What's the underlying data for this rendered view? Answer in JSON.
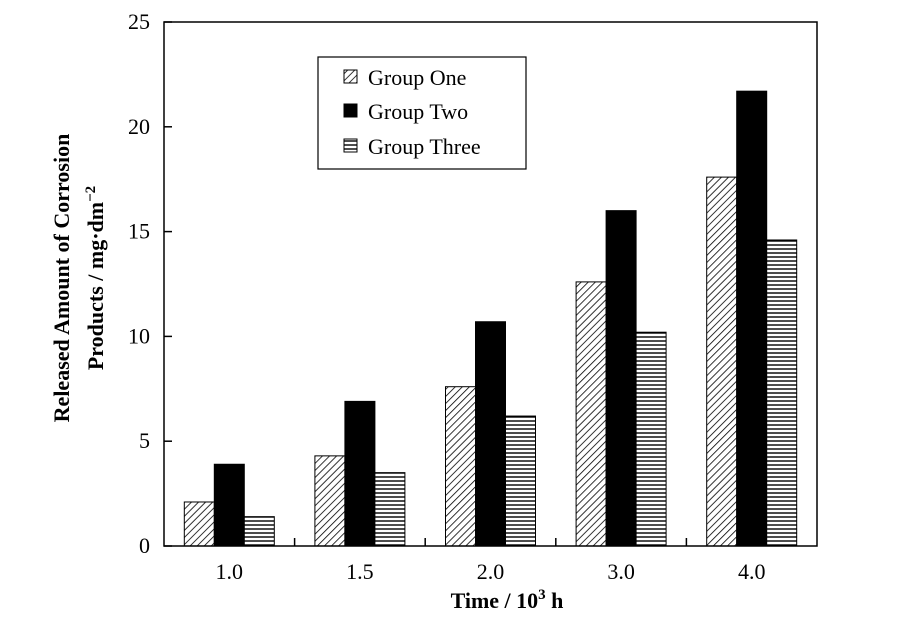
{
  "chart_data": {
    "type": "bar",
    "categories": [
      "1.0",
      "1.5",
      "2.0",
      "3.0",
      "4.0"
    ],
    "series": [
      {
        "name": "Group One",
        "values": [
          2.1,
          4.3,
          7.6,
          12.6,
          17.6
        ],
        "pattern": "diagonal-hatch"
      },
      {
        "name": "Group Two",
        "values": [
          3.9,
          6.9,
          10.7,
          16.0,
          21.7
        ],
        "pattern": "solid-black"
      },
      {
        "name": "Group Three",
        "values": [
          1.4,
          3.5,
          6.2,
          10.2,
          14.6
        ],
        "pattern": "horizontal-hatch"
      }
    ],
    "ylim": [
      0,
      25
    ],
    "yticks": [
      "0",
      "5",
      "10",
      "15",
      "20",
      "25"
    ],
    "xlabel_text": "Time / 10",
    "xlabel_superscript": "3",
    "xlabel_unit": " h",
    "ylabel_line1": "Released Amount of Corrosion",
    "ylabel_line2_text": "Products / mg·dm",
    "ylabel_line2_superscript": "−2",
    "grid": false,
    "legend_position": "top-left"
  }
}
